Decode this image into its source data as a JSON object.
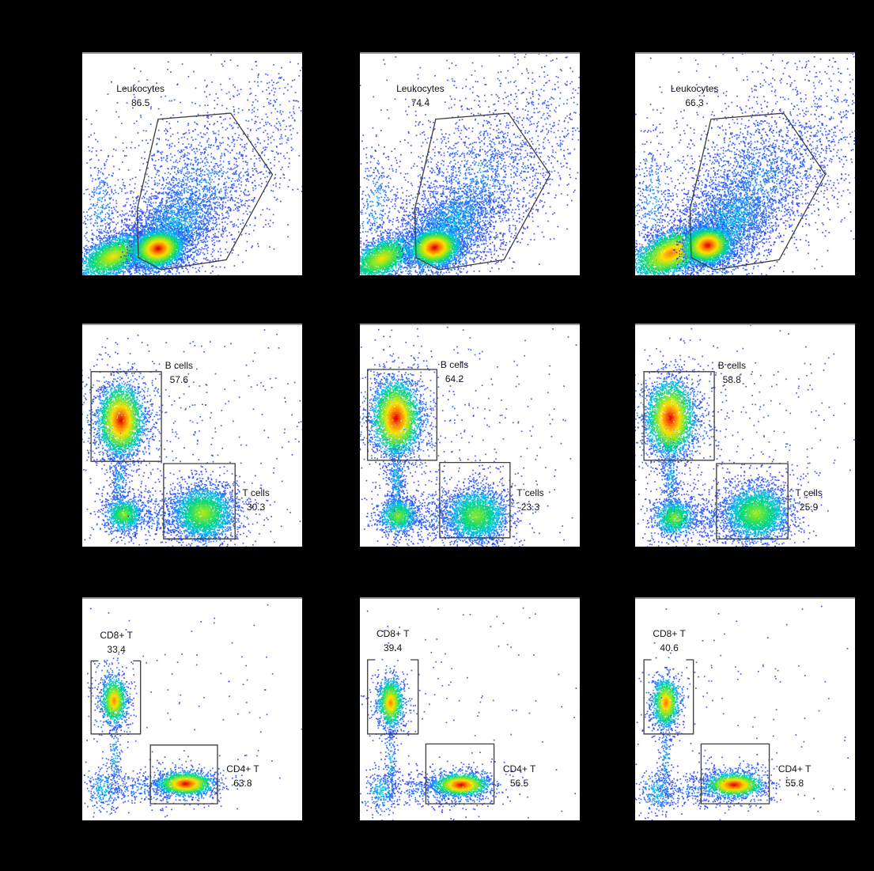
{
  "figure": {
    "background": "#000000",
    "panel_background": "#ffffff",
    "panel_top_border": "#9a9a9a",
    "gate_line_color": "#3c3c3c",
    "label_color": "#141414",
    "density_colormap_stops": [
      "#dd0000",
      "#ff7a00",
      "#ffe000",
      "#7ce82a",
      "#00d87a",
      "#00c0e8",
      "#2a5aff",
      "#3333ee"
    ],
    "density_colormap_positions": [
      0,
      0.15,
      0.3,
      0.45,
      0.6,
      0.72,
      0.86,
      1
    ]
  },
  "chart_data": {
    "type": "scatter",
    "subtype": "flow-cytometry-density-grid",
    "rows": 3,
    "cols": 3,
    "grid_note": "3 samples (columns) x 3 gating steps (rows): leukocyte gate, B/T cell gates, CD8/CD4 T gates",
    "cluster_fields": "cx, cy, sdx, sdy, count, corePos(0=red..1=blue), rho",
    "panels": [
      {
        "seed": 101,
        "gates": [
          {
            "label": "Leukocytes",
            "value": "86.5",
            "shape": "poly",
            "label_pos": [
              0.265,
              0.19
            ],
            "points": [
              [
                0.345,
                0.295
              ],
              [
                0.675,
                0.268
              ],
              [
                0.865,
                0.545
              ],
              [
                0.655,
                0.93
              ],
              [
                0.36,
                0.975
              ],
              [
                0.255,
                0.92
              ],
              [
                0.25,
                0.7
              ]
            ]
          }
        ],
        "clusters": [
          [
            0.55,
            0.4,
            0.33,
            0.28,
            320,
            0.9,
            0
          ],
          [
            0.88,
            0.25,
            0.14,
            0.16,
            260,
            0.86,
            0
          ],
          [
            0.52,
            0.62,
            0.18,
            0.16,
            1500,
            0.78,
            -0.3
          ],
          [
            0.42,
            0.77,
            0.11,
            0.09,
            1300,
            0.7,
            -0.3
          ],
          [
            0.08,
            0.7,
            0.05,
            0.13,
            330,
            0.76,
            0
          ],
          [
            0.345,
            0.875,
            0.115,
            0.085,
            1300,
            0.6,
            -0.2
          ],
          [
            0.14,
            0.915,
            0.075,
            0.05,
            2300,
            0.3,
            -0.5
          ],
          [
            0.345,
            0.88,
            0.052,
            0.038,
            2900,
            0,
            -0.1
          ]
        ]
      },
      {
        "seed": 202,
        "gates": [
          {
            "label": "Leukocytes",
            "value": "74.4",
            "shape": "poly",
            "label_pos": [
              0.275,
              0.19
            ],
            "points": [
              [
                0.345,
                0.295
              ],
              [
                0.675,
                0.268
              ],
              [
                0.865,
                0.545
              ],
              [
                0.655,
                0.93
              ],
              [
                0.36,
                0.975
              ],
              [
                0.255,
                0.92
              ],
              [
                0.25,
                0.7
              ]
            ]
          }
        ],
        "clusters": [
          [
            0.55,
            0.38,
            0.33,
            0.28,
            380,
            0.9,
            0
          ],
          [
            0.85,
            0.28,
            0.15,
            0.18,
            320,
            0.86,
            0
          ],
          [
            0.53,
            0.6,
            0.18,
            0.17,
            1700,
            0.78,
            -0.3
          ],
          [
            0.42,
            0.76,
            0.11,
            0.09,
            1400,
            0.7,
            -0.3
          ],
          [
            0.07,
            0.68,
            0.05,
            0.14,
            350,
            0.76,
            0
          ],
          [
            0.34,
            0.87,
            0.115,
            0.085,
            1300,
            0.6,
            -0.2
          ],
          [
            0.1,
            0.925,
            0.07,
            0.05,
            2100,
            0.3,
            -0.5
          ],
          [
            0.34,
            0.875,
            0.052,
            0.038,
            2800,
            0,
            -0.1
          ]
        ]
      },
      {
        "seed": 303,
        "gates": [
          {
            "label": "Leukocytes",
            "value": "66.3",
            "shape": "poly",
            "label_pos": [
              0.27,
              0.19
            ],
            "points": [
              [
                0.345,
                0.295
              ],
              [
                0.675,
                0.268
              ],
              [
                0.865,
                0.545
              ],
              [
                0.655,
                0.93
              ],
              [
                0.36,
                0.975
              ],
              [
                0.255,
                0.92
              ],
              [
                0.25,
                0.7
              ]
            ]
          }
        ],
        "clusters": [
          [
            0.55,
            0.38,
            0.33,
            0.28,
            400,
            0.9,
            0
          ],
          [
            0.87,
            0.3,
            0.15,
            0.2,
            420,
            0.86,
            0
          ],
          [
            0.55,
            0.58,
            0.19,
            0.17,
            2000,
            0.78,
            -0.3
          ],
          [
            0.43,
            0.75,
            0.12,
            0.1,
            1500,
            0.7,
            -0.3
          ],
          [
            0.08,
            0.66,
            0.05,
            0.14,
            330,
            0.76,
            0
          ],
          [
            0.33,
            0.865,
            0.115,
            0.085,
            1300,
            0.6,
            -0.2
          ],
          [
            0.165,
            0.9,
            0.085,
            0.055,
            3200,
            0.15,
            -0.5
          ],
          [
            0.33,
            0.865,
            0.05,
            0.038,
            2700,
            0,
            -0.1
          ]
        ]
      },
      {
        "seed": 404,
        "gates": [
          {
            "label": "B cells",
            "value": "57.6",
            "shape": "rect",
            "rect": [
              0.04,
              0.21,
              0.32,
              0.405
            ],
            "label_pos": [
              0.44,
              0.215
            ]
          },
          {
            "label": "T cells",
            "value": "30.3",
            "shape": "rect",
            "rect": [
              0.37,
              0.625,
              0.325,
              0.34
            ],
            "label_pos": [
              0.79,
              0.79
            ]
          }
        ],
        "clusters": [
          [
            0.5,
            0.5,
            0.33,
            0.3,
            300,
            0.9,
            0
          ],
          [
            0.175,
            0.43,
            0.1,
            0.13,
            850,
            0.65,
            0
          ],
          [
            0.17,
            0.7,
            0.02,
            0.09,
            260,
            0.72,
            0
          ],
          [
            0.35,
            0.87,
            0.09,
            0.05,
            230,
            0.8,
            0
          ],
          [
            0.19,
            0.855,
            0.08,
            0.07,
            280,
            0.7,
            0
          ],
          [
            0.19,
            0.855,
            0.042,
            0.038,
            800,
            0.42,
            0
          ],
          [
            0.55,
            0.85,
            0.11,
            0.09,
            700,
            0.68,
            0
          ],
          [
            0.55,
            0.85,
            0.068,
            0.058,
            2200,
            0.38,
            0
          ],
          [
            0.175,
            0.43,
            0.048,
            0.075,
            2600,
            0,
            0
          ]
        ]
      },
      {
        "seed": 505,
        "gates": [
          {
            "label": "B cells",
            "value": "64.2",
            "shape": "rect",
            "rect": [
              0.035,
              0.2,
              0.315,
              0.41
            ],
            "label_pos": [
              0.43,
              0.21
            ]
          },
          {
            "label": "T cells",
            "value": "23.3",
            "shape": "rect",
            "rect": [
              0.363,
              0.62,
              0.32,
              0.34
            ],
            "label_pos": [
              0.775,
              0.79
            ]
          }
        ],
        "clusters": [
          [
            0.5,
            0.5,
            0.33,
            0.3,
            300,
            0.9,
            0
          ],
          [
            0.165,
            0.42,
            0.1,
            0.13,
            900,
            0.65,
            0
          ],
          [
            0.165,
            0.7,
            0.022,
            0.11,
            430,
            0.72,
            0
          ],
          [
            0.33,
            0.88,
            0.09,
            0.05,
            260,
            0.8,
            0
          ],
          [
            0.175,
            0.86,
            0.08,
            0.07,
            280,
            0.7,
            0
          ],
          [
            0.175,
            0.86,
            0.042,
            0.038,
            780,
            0.42,
            0
          ],
          [
            0.53,
            0.86,
            0.11,
            0.09,
            650,
            0.68,
            0
          ],
          [
            0.53,
            0.86,
            0.068,
            0.058,
            2000,
            0.42,
            0
          ],
          [
            0.165,
            0.42,
            0.05,
            0.078,
            2800,
            0,
            0
          ]
        ]
      },
      {
        "seed": 606,
        "gates": [
          {
            "label": "B cells",
            "value": "58.8",
            "shape": "rect",
            "rect": [
              0.04,
              0.21,
              0.32,
              0.4
            ],
            "label_pos": [
              0.44,
              0.215
            ]
          },
          {
            "label": "T cells",
            "value": "25.9",
            "shape": "rect",
            "rect": [
              0.37,
              0.625,
              0.325,
              0.34
            ],
            "label_pos": [
              0.79,
              0.79
            ]
          }
        ],
        "clusters": [
          [
            0.5,
            0.5,
            0.33,
            0.3,
            320,
            0.9,
            0
          ],
          [
            0.16,
            0.42,
            0.1,
            0.13,
            900,
            0.65,
            0
          ],
          [
            0.16,
            0.68,
            0.022,
            0.1,
            300,
            0.72,
            0
          ],
          [
            0.34,
            0.87,
            0.09,
            0.05,
            240,
            0.8,
            0
          ],
          [
            0.18,
            0.87,
            0.08,
            0.07,
            300,
            0.7,
            0
          ],
          [
            0.18,
            0.87,
            0.045,
            0.04,
            820,
            0.42,
            0
          ],
          [
            0.55,
            0.85,
            0.11,
            0.095,
            700,
            0.68,
            0
          ],
          [
            0.55,
            0.85,
            0.07,
            0.06,
            2300,
            0.4,
            0
          ],
          [
            0.16,
            0.42,
            0.05,
            0.078,
            2600,
            0,
            0
          ]
        ]
      },
      {
        "seed": 707,
        "gates": [
          {
            "label": "CD8+ T",
            "value": "33.4",
            "shape": "rect_bracket",
            "rect": [
              0.04,
              0.28,
              0.225,
              0.33
            ],
            "gap": [
              0.15,
              0.85
            ],
            "label_pos": [
              0.155,
              0.195
            ]
          },
          {
            "label": "CD4+ T",
            "value": "63.8",
            "shape": "rect",
            "rect": [
              0.31,
              0.66,
              0.305,
              0.265
            ],
            "label_pos": [
              0.73,
              0.8
            ]
          }
        ],
        "clusters": [
          [
            0.5,
            0.45,
            0.33,
            0.3,
            100,
            0.9,
            0
          ],
          [
            0.145,
            0.46,
            0.05,
            0.09,
            260,
            0.62,
            0
          ],
          [
            0.145,
            0.72,
            0.014,
            0.09,
            140,
            0.72,
            0
          ],
          [
            0.1,
            0.86,
            0.04,
            0.05,
            240,
            0.68,
            0
          ],
          [
            0.28,
            0.855,
            0.1,
            0.035,
            260,
            0.78,
            0
          ],
          [
            0.47,
            0.835,
            0.1,
            0.05,
            420,
            0.62,
            0
          ],
          [
            0.145,
            0.46,
            0.027,
            0.05,
            1050,
            0.16,
            0
          ],
          [
            0.47,
            0.835,
            0.058,
            0.024,
            1700,
            0,
            0
          ]
        ]
      },
      {
        "seed": 808,
        "gates": [
          {
            "label": "CD8+ T",
            "value": "39.4",
            "shape": "rect_bracket",
            "rect": [
              0.035,
              0.275,
              0.23,
              0.335
            ],
            "gap": [
              0.15,
              0.85
            ],
            "label_pos": [
              0.15,
              0.19
            ]
          },
          {
            "label": "CD4+ T",
            "value": "56.5",
            "shape": "rect",
            "rect": [
              0.3,
              0.655,
              0.31,
              0.27
            ],
            "label_pos": [
              0.725,
              0.8
            ]
          }
        ],
        "clusters": [
          [
            0.5,
            0.4,
            0.35,
            0.3,
            110,
            0.9,
            0
          ],
          [
            0.14,
            0.47,
            0.05,
            0.09,
            280,
            0.62,
            0
          ],
          [
            0.14,
            0.73,
            0.014,
            0.1,
            160,
            0.72,
            0
          ],
          [
            0.1,
            0.87,
            0.04,
            0.05,
            260,
            0.68,
            0
          ],
          [
            0.3,
            0.86,
            0.11,
            0.035,
            300,
            0.78,
            0
          ],
          [
            0.46,
            0.84,
            0.1,
            0.05,
            430,
            0.62,
            0
          ],
          [
            0.14,
            0.47,
            0.027,
            0.052,
            1150,
            0.16,
            0
          ],
          [
            0.46,
            0.84,
            0.058,
            0.024,
            1500,
            0,
            0
          ]
        ]
      },
      {
        "seed": 909,
        "gates": [
          {
            "label": "CD8+ T",
            "value": "40.6",
            "shape": "rect_bracket",
            "rect": [
              0.04,
              0.275,
              0.225,
              0.335
            ],
            "gap": [
              0.15,
              0.85
            ],
            "label_pos": [
              0.155,
              0.19
            ]
          },
          {
            "label": "CD4+ T",
            "value": "55.8",
            "shape": "rect",
            "rect": [
              0.3,
              0.655,
              0.31,
              0.27
            ],
            "label_pos": [
              0.725,
              0.8
            ]
          }
        ],
        "clusters": [
          [
            0.5,
            0.4,
            0.35,
            0.3,
            110,
            0.9,
            0
          ],
          [
            0.14,
            0.47,
            0.05,
            0.09,
            280,
            0.62,
            0
          ],
          [
            0.14,
            0.73,
            0.014,
            0.1,
            150,
            0.72,
            0
          ],
          [
            0.1,
            0.87,
            0.045,
            0.05,
            280,
            0.68,
            0
          ],
          [
            0.29,
            0.86,
            0.11,
            0.035,
            280,
            0.78,
            0
          ],
          [
            0.45,
            0.84,
            0.1,
            0.05,
            430,
            0.62,
            0
          ],
          [
            0.14,
            0.47,
            0.028,
            0.052,
            1100,
            0.14,
            0
          ],
          [
            0.45,
            0.84,
            0.06,
            0.025,
            1600,
            0,
            0
          ]
        ]
      }
    ]
  }
}
